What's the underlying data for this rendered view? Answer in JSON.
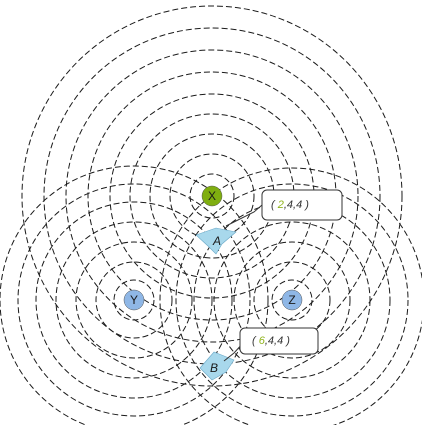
{
  "nodes": [
    {
      "id": "X",
      "label": "X",
      "color": "#7fae10"
    },
    {
      "id": "Y",
      "label": "Y",
      "color": "#8fb7e6"
    },
    {
      "id": "Z",
      "label": "Z",
      "color": "#8fb7e6"
    }
  ],
  "regions": [
    {
      "id": "A",
      "label": "A",
      "color": "#a8d8ec"
    },
    {
      "id": "B",
      "label": "B",
      "color": "#a8d8ec"
    }
  ],
  "callouts": [
    {
      "id": "A",
      "values": [
        "2",
        "4",
        "4"
      ],
      "highlight_index": 0,
      "highlight_color": "#8fb31a",
      "open": "(",
      "close": ")"
    },
    {
      "id": "B",
      "values": [
        "6",
        "4",
        "4"
      ],
      "highlight_index": 0,
      "highlight_color": "#8fb31a",
      "open": "(",
      "close": ")"
    }
  ],
  "colors": {
    "ring_stroke": "#1a1a1a",
    "text": "#333333"
  }
}
